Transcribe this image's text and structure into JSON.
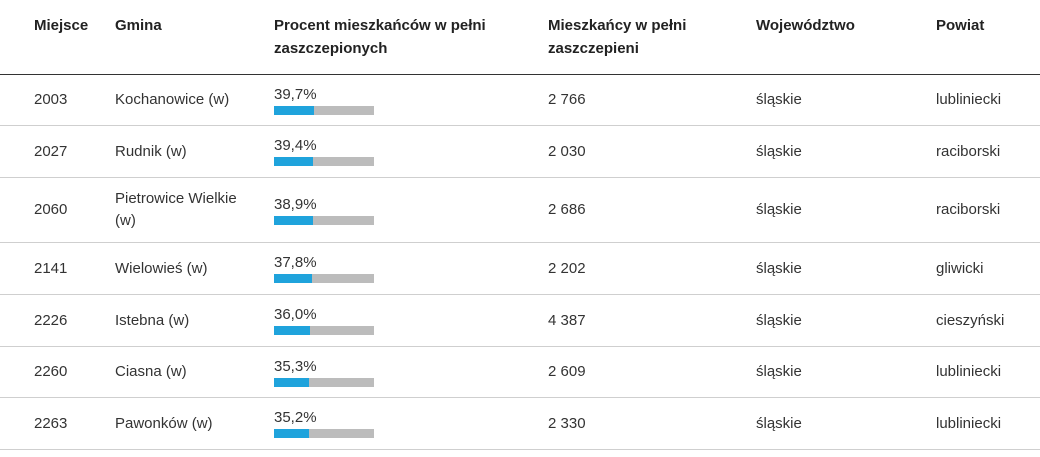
{
  "columns": {
    "rank": "Miejsce",
    "gmina": "Gmina",
    "percent": "Procent mieszkańców w pełni zaszczepionych",
    "count": "Mieszkańcy w pełni zaszczepieni",
    "voivodeship": "Województwo",
    "county": "Powiat"
  },
  "rows": [
    {
      "rank": "2003",
      "gmina": "Kochanowice (w)",
      "percent": "39,7%",
      "percent_value": 39.7,
      "count": "2 766",
      "voivodeship": "śląskie",
      "county": "lubliniecki"
    },
    {
      "rank": "2027",
      "gmina": "Rudnik (w)",
      "percent": "39,4%",
      "percent_value": 39.4,
      "count": "2 030",
      "voivodeship": "śląskie",
      "county": "raciborski"
    },
    {
      "rank": "2060",
      "gmina": "Pietrowice Wielkie (w)",
      "percent": "38,9%",
      "percent_value": 38.9,
      "count": "2 686",
      "voivodeship": "śląskie",
      "county": "raciborski"
    },
    {
      "rank": "2141",
      "gmina": "Wielowieś (w)",
      "percent": "37,8%",
      "percent_value": 37.8,
      "count": "2 202",
      "voivodeship": "śląskie",
      "county": "gliwicki"
    },
    {
      "rank": "2226",
      "gmina": "Istebna (w)",
      "percent": "36,0%",
      "percent_value": 36.0,
      "count": "4 387",
      "voivodeship": "śląskie",
      "county": "cieszyński"
    },
    {
      "rank": "2260",
      "gmina": "Ciasna (w)",
      "percent": "35,3%",
      "percent_value": 35.3,
      "count": "2 609",
      "voivodeship": "śląskie",
      "county": "lubliniecki"
    },
    {
      "rank": "2263",
      "gmina": "Pawonków (w)",
      "percent": "35,2%",
      "percent_value": 35.2,
      "count": "2 330",
      "voivodeship": "śląskie",
      "county": "lubliniecki"
    }
  ],
  "colors": {
    "bar_fill": "#1fa3dc",
    "bar_track": "#bcbcbc"
  }
}
